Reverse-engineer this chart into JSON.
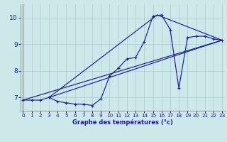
{
  "xlabel": "Graphe des températures (°c)",
  "bg_color": "#cce8e8",
  "line_color": "#1a1aaa",
  "grid_color": "#aacccc",
  "hours": [
    0,
    1,
    2,
    3,
    4,
    5,
    6,
    7,
    8,
    9,
    10,
    11,
    12,
    13,
    14,
    15,
    16,
    17,
    18,
    19,
    20,
    21,
    22,
    23
  ],
  "temps": [
    6.9,
    6.9,
    6.9,
    7.0,
    6.85,
    6.8,
    6.75,
    6.75,
    6.7,
    6.95,
    7.8,
    8.1,
    8.45,
    8.5,
    9.1,
    10.05,
    10.1,
    9.55,
    7.35,
    9.25,
    9.3,
    9.3,
    9.2,
    9.15
  ],
  "envelope_lines": [
    {
      "x": [
        0,
        23
      ],
      "y": [
        6.9,
        9.15
      ]
    },
    {
      "x": [
        3,
        15.5
      ],
      "y": [
        7.0,
        10.1
      ]
    },
    {
      "x": [
        15.5,
        23
      ],
      "y": [
        10.1,
        9.15
      ]
    },
    {
      "x": [
        3,
        23
      ],
      "y": [
        7.0,
        9.15
      ]
    }
  ],
  "xlim": [
    0,
    23
  ],
  "ylim": [
    6.5,
    10.5
  ],
  "yticks": [
    7,
    8,
    9,
    10
  ],
  "xticks": [
    0,
    1,
    2,
    3,
    4,
    5,
    6,
    7,
    8,
    9,
    10,
    11,
    12,
    13,
    14,
    15,
    16,
    17,
    18,
    19,
    20,
    21,
    22,
    23
  ],
  "xlabel_fontsize": 6.0,
  "tick_fontsize_x": 5.2,
  "tick_fontsize_y": 6.5
}
